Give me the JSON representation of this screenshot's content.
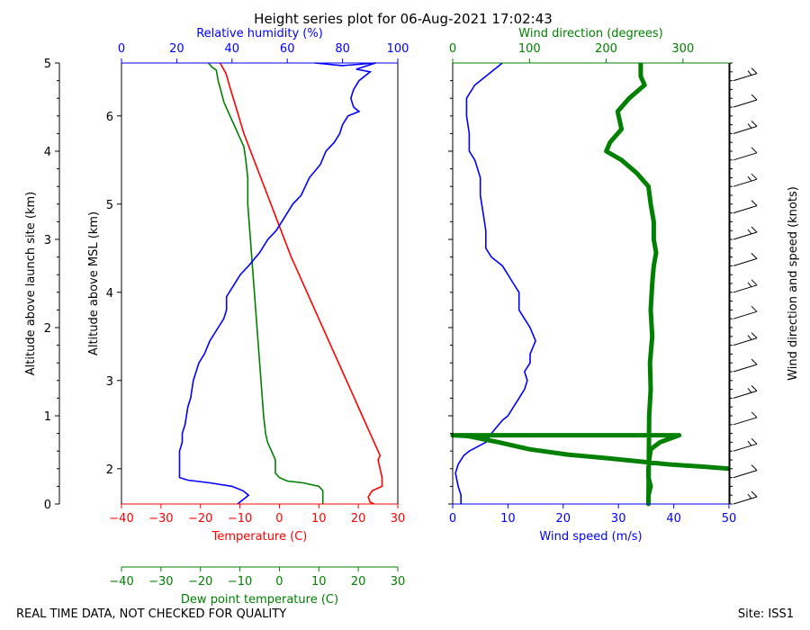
{
  "title": "Height series plot for 06-Aug-2021 17:02:43",
  "footer": {
    "left": "REAL TIME DATA, NOT CHECKED FOR QUALITY",
    "right": "Site: ISS1"
  },
  "colors": {
    "temperature": "#ff0000",
    "dewpoint": "#008000",
    "humidity": "#0000ff",
    "wind_speed": "#0000ff",
    "wind_direction": "#008000",
    "barbs": "#000000"
  },
  "chart_data": [
    {
      "type": "line",
      "name": "thermo-panel",
      "y_outer": {
        "label": "Altitude above launch site (km)",
        "lim": [
          0,
          5
        ],
        "ticks": [
          0,
          1,
          2,
          3,
          4,
          5
        ]
      },
      "y_inner": {
        "label": "Altitude above MSL (km)",
        "lim": [
          1.6,
          6.6
        ],
        "ticks": [
          2,
          3,
          4,
          5,
          6
        ]
      },
      "x_bottom": {
        "label": "Temperature (C)",
        "lim": [
          -40,
          30
        ],
        "ticks": [
          -40,
          -30,
          -20,
          -10,
          0,
          10,
          20,
          30
        ]
      },
      "x_top": {
        "label": "Relative humidity (%)",
        "lim": [
          0,
          100
        ],
        "ticks": [
          0,
          20,
          40,
          60,
          80,
          100
        ]
      },
      "x_extra": {
        "label": "Dew point temperature (C)",
        "lim": [
          -40,
          30
        ],
        "ticks": [
          -40,
          -30,
          -20,
          -10,
          0,
          10,
          20,
          30
        ]
      },
      "series": [
        {
          "name": "Temperature",
          "axis": "temp",
          "points": [
            [
              24,
              0
            ],
            [
              23,
              0.02
            ],
            [
              22.5,
              0.08
            ],
            [
              23.5,
              0.15
            ],
            [
              26,
              0.2
            ],
            [
              26,
              0.3
            ],
            [
              25.5,
              0.4
            ],
            [
              25,
              0.5
            ],
            [
              25.5,
              0.55
            ],
            [
              24.5,
              0.65
            ],
            [
              23,
              0.8
            ],
            [
              21,
              1.0
            ],
            [
              18,
              1.3
            ],
            [
              13,
              1.8
            ],
            [
              8,
              2.3
            ],
            [
              3,
              2.8
            ],
            [
              0,
              3.15
            ],
            [
              -3,
              3.5
            ],
            [
              -6,
              3.85
            ],
            [
              -9,
              4.2
            ],
            [
              -11,
              4.5
            ],
            [
              -12.5,
              4.72
            ],
            [
              -13.5,
              4.88
            ],
            [
              -15,
              5.0
            ]
          ]
        },
        {
          "name": "Dew point",
          "axis": "temp",
          "points": [
            [
              11,
              0
            ],
            [
              11,
              0.1
            ],
            [
              11,
              0.15
            ],
            [
              10,
              0.2
            ],
            [
              6,
              0.24
            ],
            [
              2,
              0.26
            ],
            [
              0,
              0.3
            ],
            [
              -1,
              0.35
            ],
            [
              -1,
              0.5
            ],
            [
              -2,
              0.6
            ],
            [
              -3,
              0.7
            ],
            [
              -3.5,
              0.8
            ],
            [
              -4,
              1.0
            ],
            [
              -4.5,
              1.3
            ],
            [
              -5,
              1.6
            ],
            [
              -5.5,
              1.9
            ],
            [
              -6,
              2.2
            ],
            [
              -6.5,
              2.5
            ],
            [
              -7,
              2.8
            ],
            [
              -7.5,
              3.1
            ],
            [
              -8,
              3.4
            ],
            [
              -8,
              3.7
            ],
            [
              -8.5,
              3.9
            ],
            [
              -9,
              4.05
            ],
            [
              -10.5,
              4.2
            ],
            [
              -12,
              4.35
            ],
            [
              -14,
              4.55
            ],
            [
              -15.5,
              4.8
            ],
            [
              -16,
              4.92
            ],
            [
              -17,
              4.95
            ],
            [
              -18,
              5.0
            ]
          ]
        },
        {
          "name": "Relative humidity",
          "axis": "rh",
          "points": [
            [
              42,
              0
            ],
            [
              44,
              0.05
            ],
            [
              46,
              0.1
            ],
            [
              44,
              0.15
            ],
            [
              40,
              0.2
            ],
            [
              32,
              0.24
            ],
            [
              24,
              0.27
            ],
            [
              21,
              0.3
            ],
            [
              21,
              0.4
            ],
            [
              21,
              0.5
            ],
            [
              21,
              0.6
            ],
            [
              22,
              0.7
            ],
            [
              22,
              0.8
            ],
            [
              23,
              0.9
            ],
            [
              24,
              1.1
            ],
            [
              25,
              1.2
            ],
            [
              26,
              1.4
            ],
            [
              28,
              1.6
            ],
            [
              30,
              1.7
            ],
            [
              32,
              1.85
            ],
            [
              35,
              2.0
            ],
            [
              37,
              2.1
            ],
            [
              38,
              2.2
            ],
            [
              38,
              2.35
            ],
            [
              40,
              2.45
            ],
            [
              43,
              2.6
            ],
            [
              46,
              2.7
            ],
            [
              50,
              2.85
            ],
            [
              53,
              3.0
            ],
            [
              56,
              3.1
            ],
            [
              58,
              3.2
            ],
            [
              62,
              3.4
            ],
            [
              65,
              3.5
            ],
            [
              68,
              3.7
            ],
            [
              72,
              3.85
            ],
            [
              74,
              4.0
            ],
            [
              77,
              4.1
            ],
            [
              79,
              4.2
            ],
            [
              80,
              4.3
            ],
            [
              82,
              4.4
            ],
            [
              86,
              4.45
            ],
            [
              84,
              4.5
            ],
            [
              83,
              4.6
            ],
            [
              84,
              4.7
            ],
            [
              86,
              4.8
            ],
            [
              90,
              4.9
            ],
            [
              85,
              4.93
            ],
            [
              92,
              5.0
            ],
            [
              80,
              4.97
            ],
            [
              70,
              5.0
            ]
          ]
        }
      ]
    },
    {
      "type": "line",
      "name": "wind-panel",
      "x_bottom": {
        "label": "Wind speed (m/s)",
        "lim": [
          0,
          50
        ],
        "ticks": [
          0,
          10,
          20,
          30,
          40,
          50
        ]
      },
      "x_top": {
        "label": "Wind direction (degrees)",
        "lim": [
          0,
          360
        ],
        "ticks": [
          0,
          100,
          200,
          300
        ]
      },
      "y_lim": [
        0,
        5
      ],
      "series": [
        {
          "name": "Wind speed",
          "axis": "speed",
          "points": [
            [
              1.5,
              0
            ],
            [
              1.5,
              0.1
            ],
            [
              1,
              0.2
            ],
            [
              0.5,
              0.35
            ],
            [
              1,
              0.45
            ],
            [
              2,
              0.55
            ],
            [
              3,
              0.6
            ],
            [
              6,
              0.7
            ],
            [
              7,
              0.8
            ],
            [
              9,
              0.95
            ],
            [
              10,
              1.0
            ],
            [
              11,
              1.1
            ],
            [
              12,
              1.2
            ],
            [
              13,
              1.3
            ],
            [
              13.5,
              1.4
            ],
            [
              13,
              1.5
            ],
            [
              14,
              1.6
            ],
            [
              14,
              1.7
            ],
            [
              15,
              1.85
            ],
            [
              14,
              2.0
            ],
            [
              13,
              2.1
            ],
            [
              12,
              2.2
            ],
            [
              12,
              2.3
            ],
            [
              12,
              2.4
            ],
            [
              11,
              2.5
            ],
            [
              10,
              2.6
            ],
            [
              9,
              2.7
            ],
            [
              7,
              2.8
            ],
            [
              6,
              2.9
            ],
            [
              6,
              3.1
            ],
            [
              5.5,
              3.3
            ],
            [
              5,
              3.5
            ],
            [
              5,
              3.7
            ],
            [
              4,
              3.9
            ],
            [
              3,
              4.0
            ],
            [
              3,
              4.2
            ],
            [
              2.5,
              4.4
            ],
            [
              2.5,
              4.6
            ],
            [
              4,
              4.75
            ],
            [
              6,
              4.85
            ],
            [
              8,
              4.95
            ],
            [
              9,
              5.0
            ]
          ]
        },
        {
          "name": "Wind direction",
          "axis": "dir",
          "points": [
            [
              360,
              0.4
            ],
            [
              330,
              0.42
            ],
            [
              280,
              0.45
            ],
            [
              200,
              0.52
            ],
            [
              150,
              0.56
            ],
            [
              100,
              0.62
            ],
            [
              60,
              0.7
            ],
            [
              20,
              0.77
            ],
            [
              0,
              0.78
            ],
            [
              0,
              0.78
            ],
            [
              295,
              0.78
            ],
            [
              270,
              0.7
            ],
            [
              258,
              0.62
            ],
            [
              256,
              0.5
            ],
            [
              255,
              0.4
            ],
            [
              255,
              0.3
            ],
            [
              258,
              0.2
            ],
            [
              255,
              0.1
            ],
            [
              255,
              0.0
            ],
            [
              256,
              1.0
            ],
            [
              258,
              1.3
            ],
            [
              257,
              1.6
            ],
            [
              260,
              1.9
            ],
            [
              258,
              2.2
            ],
            [
              260,
              2.5
            ],
            [
              262,
              2.7
            ],
            [
              265,
              2.85
            ],
            [
              262,
              3.0
            ],
            [
              262,
              3.2
            ],
            [
              258,
              3.4
            ],
            [
              255,
              3.6
            ],
            [
              240,
              3.75
            ],
            [
              220,
              3.9
            ],
            [
              200,
              4.0
            ],
            [
              205,
              4.1
            ],
            [
              220,
              4.25
            ],
            [
              215,
              4.45
            ],
            [
              230,
              4.6
            ],
            [
              250,
              4.75
            ],
            [
              245,
              4.85
            ],
            [
              245,
              5.0
            ]
          ]
        }
      ]
    },
    {
      "type": "barbs",
      "name": "wind-barbs",
      "ylabel": "Wind direction and speed (knots)",
      "heights": [
        0.0,
        0.3,
        0.6,
        0.9,
        1.2,
        1.5,
        1.8,
        2.1,
        2.4,
        2.7,
        3.0,
        3.3,
        3.6,
        3.9,
        4.2,
        4.5,
        4.8
      ]
    }
  ]
}
